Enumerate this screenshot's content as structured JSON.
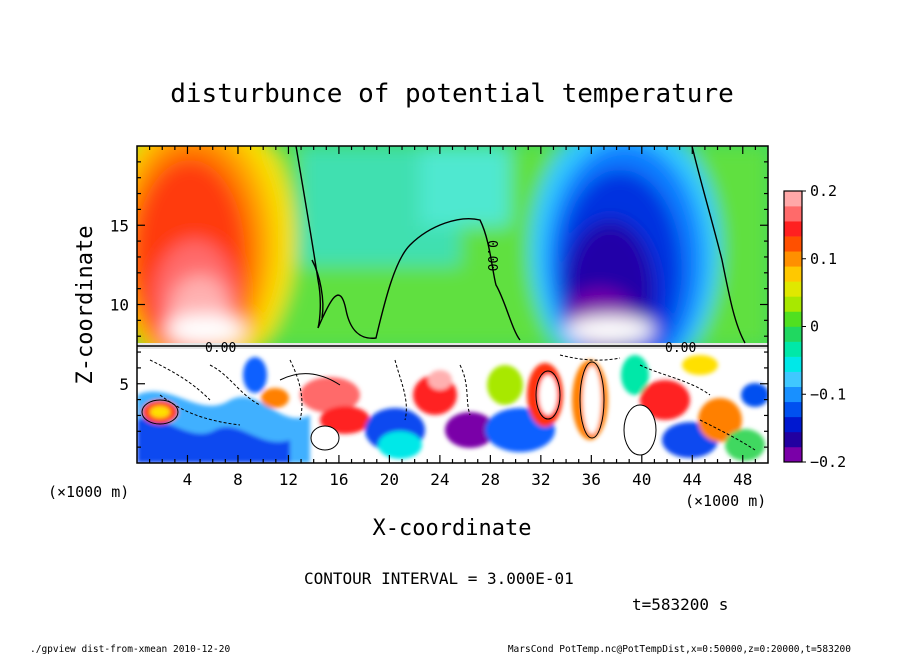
{
  "chart_data": {
    "type": "heatmap",
    "title": "disturbunce of potential temperature",
    "xlabel": "X-coordinate",
    "ylabel": "Z-coordinate",
    "x_unit": "(×1000 m)",
    "y_unit": "(×1000 m)",
    "xlim": [
      0,
      50
    ],
    "ylim": [
      0,
      20
    ],
    "x_ticks": [
      4,
      8,
      12,
      16,
      20,
      24,
      28,
      32,
      36,
      40,
      44,
      48
    ],
    "y_ticks": [
      5,
      10,
      15
    ],
    "colorbar": {
      "range": [
        -0.2,
        0.2
      ],
      "labels": [
        "0.2",
        "0.1",
        "0",
        "−0.1",
        "−0.2"
      ],
      "label_values": [
        0.2,
        0.1,
        0,
        -0.1,
        -0.2
      ],
      "colors": [
        "#7a00a8",
        "#2200a0",
        "#0018d0",
        "#0050f0",
        "#1890ff",
        "#40c8ff",
        "#00e8e8",
        "#00e8a8",
        "#20d860",
        "#50e020",
        "#a8e800",
        "#e0e800",
        "#ffc800",
        "#ff9000",
        "#ff5000",
        "#ff2020",
        "#ff6a6a",
        "#ffa8a8"
      ]
    },
    "contour_label": "0.00",
    "contour_interval_text": "CONTOUR INTERVAL = 3.000E-01",
    "time_text": "t=583200 s"
  },
  "footer": {
    "left": "./gpview_dist-from-xmean  2010-12-20",
    "right": "MarsCond_PotTemp.nc@PotTempDist,x=0:50000,z=0:20000,t=583200"
  }
}
